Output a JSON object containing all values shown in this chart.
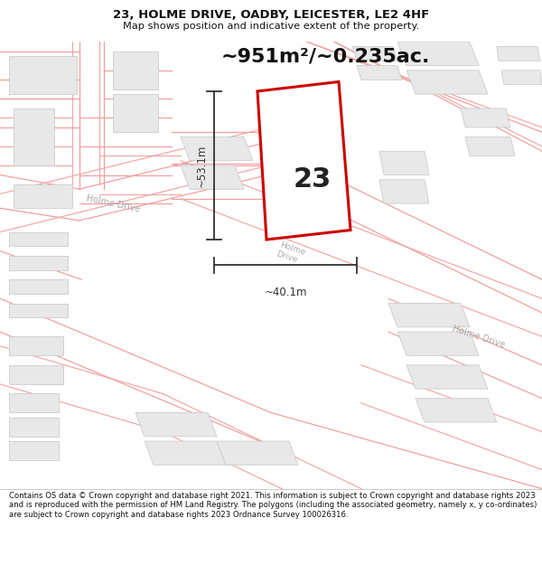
{
  "title_line1": "23, HOLME DRIVE, OADBY, LEICESTER, LE2 4HF",
  "title_line2": "Map shows position and indicative extent of the property.",
  "area_label": "~951m²/~0.235ac.",
  "plot_number": "23",
  "dim_vertical": "~53.1m",
  "dim_horizontal": "~40.1m",
  "footer_text": "Contains OS data © Crown copyright and database right 2021. This information is subject to Crown copyright and database rights 2023 and is reproduced with the permission of HM Land Registry. The polygons (including the associated geometry, namely x, y co-ordinates) are subject to Crown copyright and database rights 2023 Ordnance Survey 100026316.",
  "bg_color": "#ffffff",
  "map_bg": "#ffffff",
  "plot_color": "#cc0000",
  "road_outline_color": "#f0a0a0",
  "building_fill": "#e8e8e8",
  "building_edge": "#cccccc",
  "road_label_color": "#aaaaaa",
  "text_color": "#111111",
  "dim_color": "#333333",
  "title_fs": 9.5,
  "subtitle_fs": 8.2,
  "area_fs": 16,
  "num_fs": 22,
  "dim_fs": 8.5,
  "footer_fs": 6.1
}
